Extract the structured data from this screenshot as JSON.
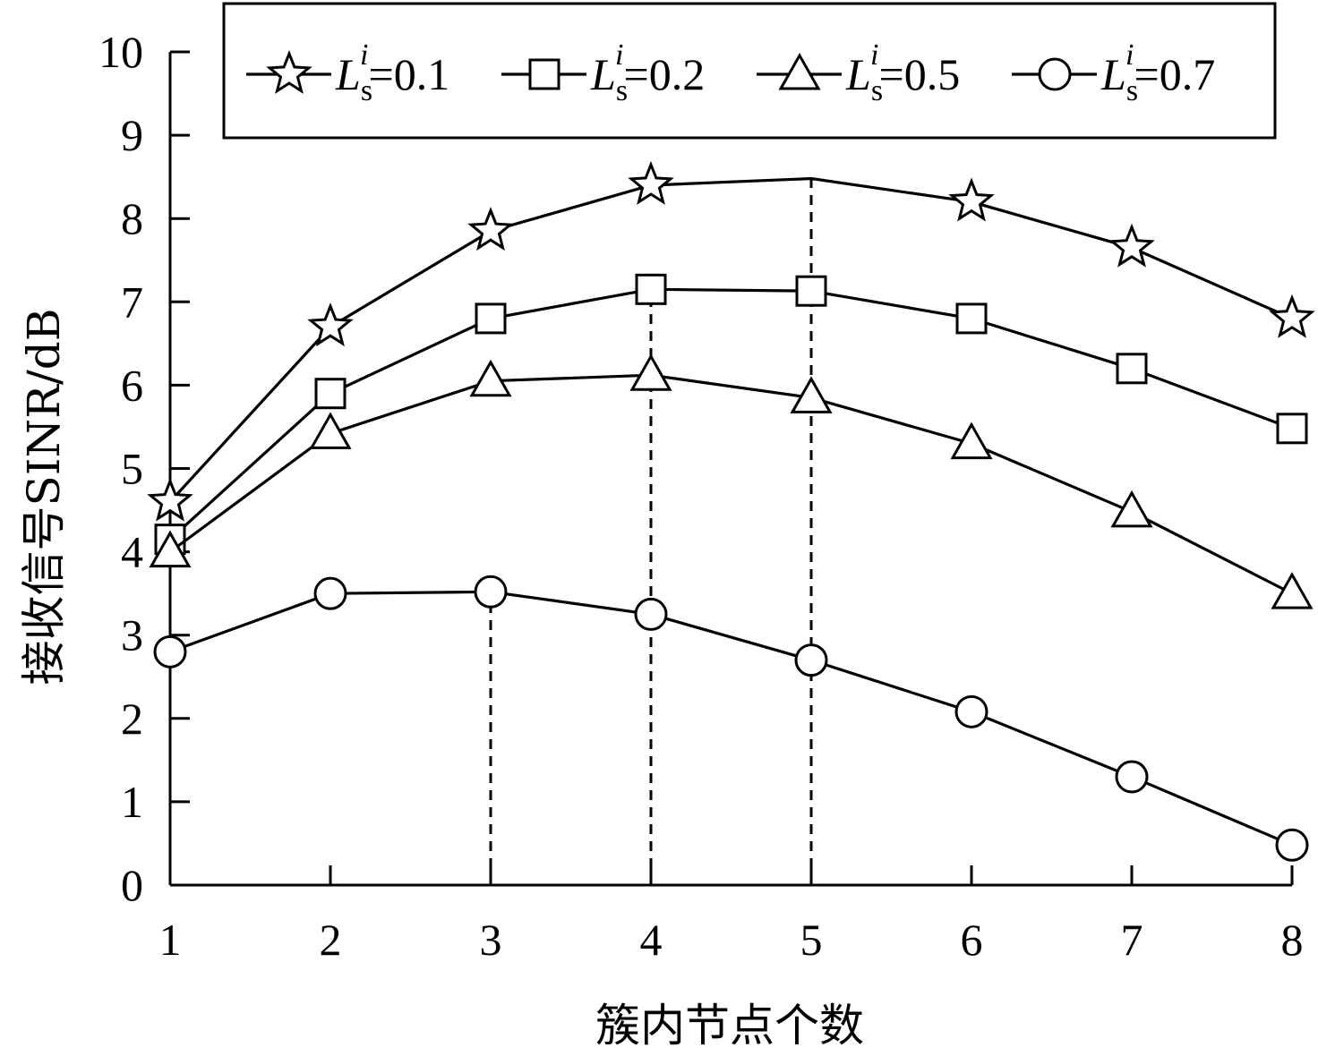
{
  "chart_data": {
    "type": "line",
    "xlabel": "簇内节点个数",
    "ylabel": "接收信号SINR/dB",
    "x": [
      1,
      2,
      3,
      4,
      5,
      6,
      7,
      8
    ],
    "xlim": [
      1,
      8
    ],
    "ylim": [
      0,
      10
    ],
    "yticks": [
      0,
      1,
      2,
      3,
      4,
      5,
      6,
      7,
      8,
      9,
      10
    ],
    "xticks": [
      1,
      2,
      3,
      4,
      5,
      6,
      7,
      8
    ],
    "grid": false,
    "legend_position": "top",
    "series": [
      {
        "name": "L_s^i=0.1",
        "label_main": "L",
        "label_sub": "s",
        "label_sup": "i",
        "label_value": "=0.1",
        "marker": "star",
        "values": [
          4.6,
          6.7,
          7.85,
          8.4,
          8.48,
          8.2,
          7.65,
          6.8
        ],
        "marker_mask": [
          1,
          1,
          1,
          1,
          0,
          1,
          1,
          1
        ]
      },
      {
        "name": "L_s^i=0.2",
        "label_main": "L",
        "label_sub": "s",
        "label_sup": "i",
        "label_value": "=0.2",
        "marker": "square",
        "values": [
          4.15,
          5.9,
          6.8,
          7.15,
          7.13,
          6.8,
          6.2,
          5.48
        ],
        "marker_mask": [
          1,
          1,
          1,
          1,
          1,
          1,
          1,
          1
        ]
      },
      {
        "name": "L_s^i=0.5",
        "label_main": "L",
        "label_sub": "s",
        "label_sup": "i",
        "label_value": "=0.5",
        "marker": "triangle",
        "values": [
          4.0,
          5.42,
          6.05,
          6.12,
          5.85,
          5.3,
          4.48,
          3.5
        ],
        "marker_mask": [
          1,
          1,
          1,
          1,
          1,
          1,
          1,
          1
        ]
      },
      {
        "name": "L_s^i=0.7",
        "label_main": "L",
        "label_sub": "s",
        "label_sup": "i",
        "label_value": "=0.7",
        "marker": "circle",
        "values": [
          2.8,
          3.5,
          3.52,
          3.25,
          2.7,
          2.08,
          1.3,
          0.48
        ],
        "marker_mask": [
          1,
          1,
          1,
          1,
          1,
          1,
          1,
          1
        ]
      }
    ],
    "dashed_guides": [
      {
        "x": 3,
        "y_top": 3.52
      },
      {
        "x": 4,
        "y_top": 7.15
      },
      {
        "x": 5,
        "y_top": 8.48
      }
    ]
  }
}
